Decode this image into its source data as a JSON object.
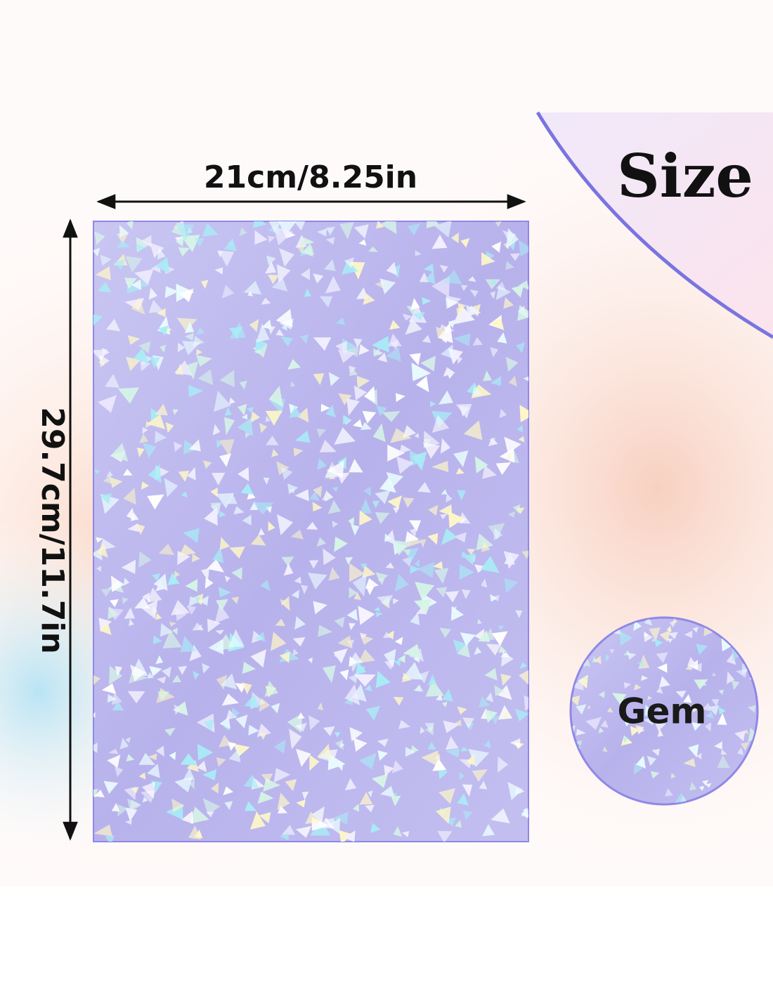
{
  "width_label": "21cm/8.25in",
  "height_label": "29.7cm/11.7in",
  "heading": "Size",
  "finish_label": "Gem"
}
